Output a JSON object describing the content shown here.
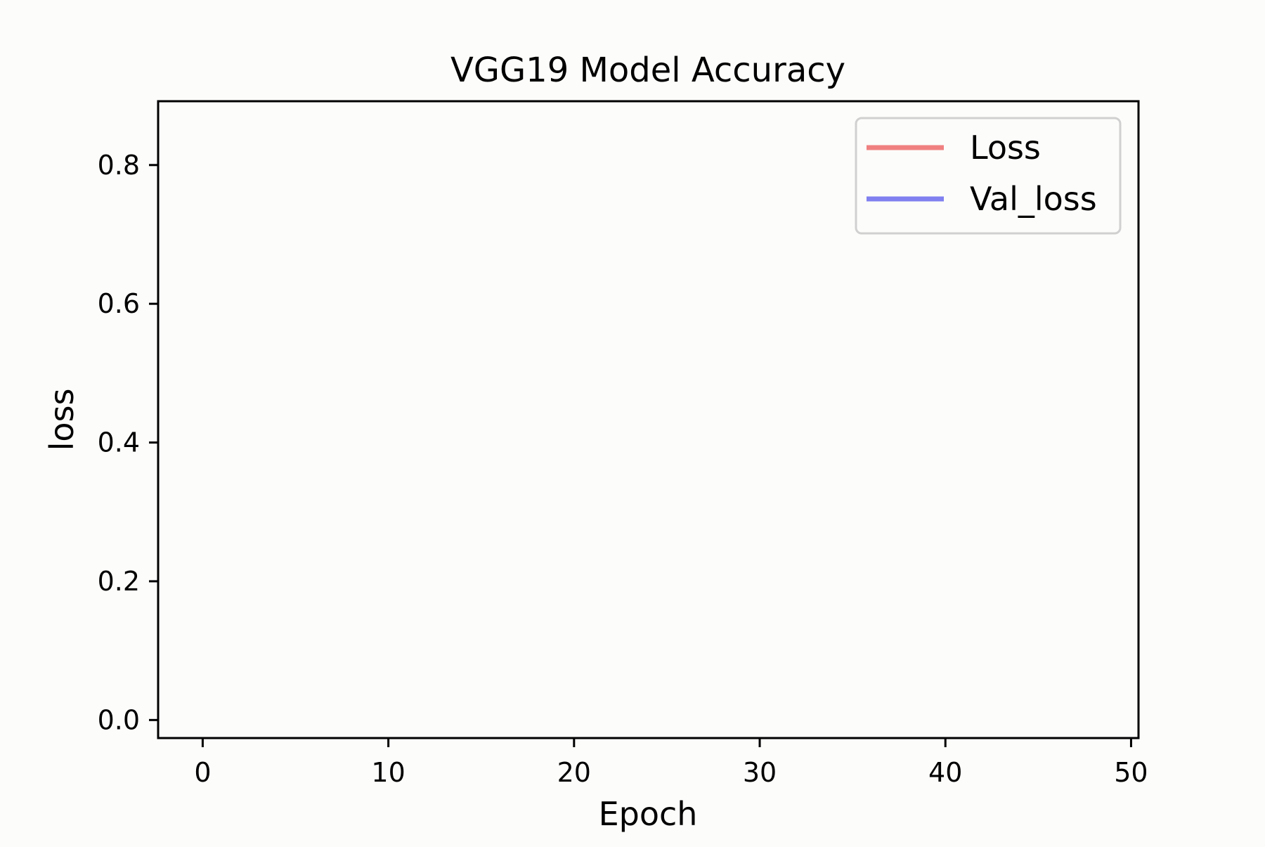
{
  "chart_data": {
    "type": "line",
    "title": "VGG19 Model Accuracy",
    "xlabel": "Epoch",
    "ylabel": "loss",
    "xlim": [
      -2.4,
      50.4
    ],
    "ylim": [
      -0.026,
      0.892
    ],
    "xticks": [
      0,
      10,
      20,
      30,
      40,
      50
    ],
    "yticks": [
      0.0,
      0.2,
      0.4,
      0.6,
      0.8
    ],
    "xtick_labels": [
      "0",
      "10",
      "20",
      "30",
      "40",
      "50"
    ],
    "ytick_labels": [
      "0.0",
      "0.2",
      "0.4",
      "0.6",
      "0.8"
    ],
    "grid": false,
    "legend_position": "top-right",
    "series": [
      {
        "name": "Loss",
        "color": "#f08080",
        "x": [],
        "values": []
      },
      {
        "name": "Val_loss",
        "color": "#8080f0",
        "x": [],
        "values": []
      }
    ]
  },
  "colors": {
    "background": "#fcfcfa",
    "axes": "#000000",
    "legend_border": "#d0d0d0"
  }
}
